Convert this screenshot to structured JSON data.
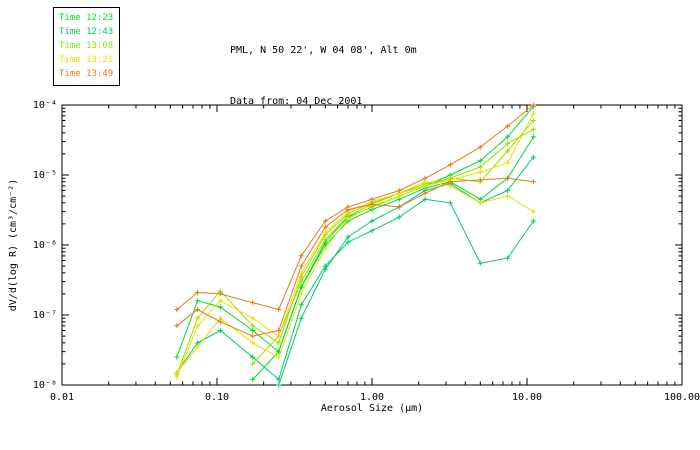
{
  "header": {
    "title_line1": "PML, N 50 22', W 04 08', Alt 0m",
    "title_line2": "Data from: 04 Dec 2001"
  },
  "legend": {
    "items": [
      {
        "label": "Time 12:23",
        "color": "#00dd22"
      },
      {
        "label": "Time 12:43",
        "color": "#00cc66"
      },
      {
        "label": "Time 13:08",
        "color": "#99dd00"
      },
      {
        "label": "Time 13:21",
        "color": "#e8e000"
      },
      {
        "label": "Time 13:49",
        "color": "#e87818"
      }
    ]
  },
  "chart_data": {
    "type": "line",
    "title": "PML, N 50 22', W 04 08', Alt 0m",
    "subtitle": "Data from: 04 Dec 2001",
    "xlabel": "Aerosol Size (μm)",
    "ylabel": "dV/d(log R) (cm³/cm⁻²)",
    "x_scale": "log",
    "y_scale": "log",
    "xlim": [
      0.01,
      100
    ],
    "ylim": [
      1e-08,
      0.0001
    ],
    "grid": false,
    "legend_position": "top-left",
    "x_ticks": [
      {
        "v": 0.01,
        "label": "0.01"
      },
      {
        "v": 0.1,
        "label": "0.10"
      },
      {
        "v": 1,
        "label": "1.00"
      },
      {
        "v": 10,
        "label": "10.00"
      },
      {
        "v": 100,
        "label": "100.00"
      }
    ],
    "y_ticks": [
      {
        "v": 1e-08,
        "label": "10⁻⁸"
      },
      {
        "v": 1e-07,
        "label": "10⁻⁷"
      },
      {
        "v": 1e-06,
        "label": "10⁻⁶"
      },
      {
        "v": 1e-05,
        "label": "10⁻⁵"
      },
      {
        "v": 0.0001,
        "label": "10⁻⁴"
      }
    ],
    "series": [
      {
        "name": "Time 12:23",
        "color": "#00dd22",
        "x": [
          0.055,
          0.075,
          0.105,
          0.17,
          0.25,
          0.35,
          0.5,
          0.7,
          1.0,
          1.5,
          2.2,
          3.2,
          5.0,
          7.5,
          11.0
        ],
        "y": [
          2.5e-08,
          1.6e-07,
          1.3e-07,
          6e-08,
          3e-08,
          2.5e-07,
          1e-06,
          2.2e-06,
          3.2e-06,
          4.5e-06,
          6.5e-06,
          8e-06,
          4.5e-06,
          9e-06,
          3.5e-05
        ]
      },
      {
        "name": "Time 12:23",
        "color": "#00dd22",
        "x": [
          0.17,
          0.25,
          0.35,
          0.5,
          0.7,
          1.0,
          1.5,
          2.2,
          3.2,
          5.0,
          7.5,
          11.0
        ],
        "y": [
          1.2e-08,
          3e-08,
          2.5e-07,
          1.1e-06,
          2.5e-06,
          3.5e-06,
          5e-06,
          7e-06,
          1e-05,
          1.6e-05,
          3.5e-05,
          9.5e-05
        ]
      },
      {
        "name": "Time 12:43",
        "color": "#00cc66",
        "x": [
          0.055,
          0.075,
          0.105,
          0.17,
          0.25,
          0.35,
          0.5,
          0.7,
          1.0,
          1.5,
          2.2,
          3.2,
          5.0,
          7.5,
          11.0
        ],
        "y": [
          1.5e-08,
          4e-08,
          6e-08,
          2.5e-08,
          1.2e-08,
          1.4e-07,
          5e-07,
          1.1e-06,
          1.6e-06,
          2.5e-06,
          4.5e-06,
          4e-06,
          5.5e-07,
          6.5e-07,
          2.2e-06
        ]
      },
      {
        "name": "Time 12:43",
        "color": "#00cc66",
        "x": [
          0.25,
          0.35,
          0.5,
          0.7,
          1.0,
          1.5,
          2.2,
          3.2,
          5.0,
          7.5,
          11.0
        ],
        "y": [
          1e-08,
          9e-08,
          4.5e-07,
          1.3e-06,
          2.2e-06,
          3.5e-06,
          6e-06,
          7.5e-06,
          4e-06,
          6e-06,
          1.8e-05
        ]
      },
      {
        "name": "Time 13:08",
        "color": "#99dd00",
        "x": [
          0.055,
          0.075,
          0.105,
          0.17,
          0.25,
          0.35,
          0.5,
          0.7,
          1.0,
          1.5,
          2.2,
          3.2,
          5.0,
          7.5,
          11.0
        ],
        "y": [
          1.4e-08,
          9e-08,
          2.2e-07,
          7e-08,
          4e-08,
          3.5e-07,
          1.4e-06,
          2.8e-06,
          4e-06,
          5.5e-06,
          7.5e-06,
          9e-06,
          8e-06,
          2.2e-05,
          6e-05
        ]
      },
      {
        "name": "Time 13:08",
        "color": "#99dd00",
        "x": [
          0.17,
          0.25,
          0.35,
          0.5,
          0.7,
          1.0,
          1.5,
          2.2,
          3.2,
          5.0,
          7.5,
          11.0
        ],
        "y": [
          2e-08,
          5e-08,
          3e-07,
          1.2e-06,
          2.6e-06,
          3.8e-06,
          5.5e-06,
          7e-06,
          9e-06,
          1.3e-05,
          2.8e-05,
          4.5e-05
        ]
      },
      {
        "name": "Time 13:21",
        "color": "#e8e000",
        "x": [
          0.055,
          0.075,
          0.105,
          0.17,
          0.25,
          0.35,
          0.5,
          0.7,
          1.0,
          1.5,
          2.2,
          3.2,
          5.0,
          7.5,
          11.0
        ],
        "y": [
          1.3e-08,
          7e-08,
          1.6e-07,
          9e-08,
          5e-08,
          4e-07,
          1.5e-06,
          3e-06,
          4.2e-06,
          5.5e-06,
          8e-06,
          7e-06,
          4e-06,
          5e-06,
          3e-06
        ]
      },
      {
        "name": "Time 13:21",
        "color": "#e8e000",
        "x": [
          0.055,
          0.075,
          0.105,
          0.17,
          0.25,
          0.35,
          0.5,
          0.7,
          1.0,
          1.5,
          2.2,
          3.2,
          5.0,
          7.5,
          11.0
        ],
        "y": [
          1.5e-08,
          3.5e-08,
          9e-08,
          4e-08,
          2.5e-08,
          2e-07,
          9e-07,
          2.4e-06,
          3.6e-06,
          5e-06,
          7e-06,
          8.5e-06,
          1.1e-05,
          1.5e-05,
          7.5e-05
        ]
      },
      {
        "name": "Time 13:49",
        "color": "#e87818",
        "x": [
          0.055,
          0.075,
          0.105,
          0.17,
          0.25,
          0.35,
          0.5,
          0.7,
          1.0,
          1.5,
          2.2,
          3.2,
          5.0,
          7.5,
          11.0
        ],
        "y": [
          1.2e-07,
          2.1e-07,
          2e-07,
          1.5e-07,
          1.2e-07,
          7e-07,
          2.2e-06,
          3.5e-06,
          4.5e-06,
          6e-06,
          9e-06,
          1.4e-05,
          2.5e-05,
          5e-05,
          0.0001
        ]
      },
      {
        "name": "Time 13:49",
        "color": "#e87818",
        "x": [
          0.055,
          0.075,
          0.105,
          0.17,
          0.25,
          0.35,
          0.5,
          0.7,
          1.0,
          1.5,
          2.2,
          3.2,
          5.0,
          7.5,
          11.0
        ],
        "y": [
          7e-08,
          1.2e-07,
          8e-08,
          5e-08,
          6e-08,
          5e-07,
          1.8e-06,
          3.2e-06,
          3.8e-06,
          3.5e-06,
          5.5e-06,
          8e-06,
          8.5e-06,
          9e-06,
          8e-06
        ]
      }
    ]
  }
}
